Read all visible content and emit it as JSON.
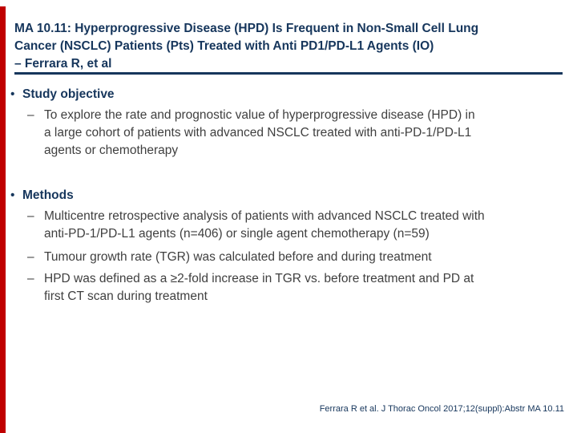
{
  "slide": {
    "colors": {
      "accent_bar": "#C00000",
      "heading_text": "#16365C",
      "body_text": "#3F3F3F"
    },
    "markers": {
      "level1_bullet": "•",
      "level2_dash": "–"
    },
    "title_lines": [
      "MA 10.11: Hyperprogressive Disease (HPD) Is Frequent in Non-Small Cell Lung",
      "Cancer (NSCLC) Patients (Pts) Treated with Anti PD1/PD-L1 Agents (IO)",
      "– Ferrara R, et al"
    ],
    "sections": [
      {
        "heading": "Study objective",
        "items": [
          {
            "lines": [
              "To explore the rate and prognostic value of hyperprogressive disease (HPD) in",
              "a large cohort of patients with advanced NSCLC treated with anti-PD-1/PD-L1",
              "agents or chemotherapy"
            ]
          }
        ]
      },
      {
        "heading": "Methods",
        "items": [
          {
            "lines": [
              "Multicentre retrospective analysis of patients with advanced NSCLC treated with",
              "anti-PD-1/PD-L1 agents (n=406) or single agent chemotherapy (n=59)"
            ]
          },
          {
            "lines": [
              "Tumour growth rate (TGR) was calculated before and during treatment"
            ]
          },
          {
            "lines": [
              "HPD was defined as a ≥2-fold increase in TGR vs. before treatment and PD at",
              "first CT scan during treatment"
            ]
          }
        ]
      }
    ],
    "footer_citation": "Ferrara R et al. J Thorac Oncol 2017;12(suppl):Abstr MA 10.11"
  }
}
